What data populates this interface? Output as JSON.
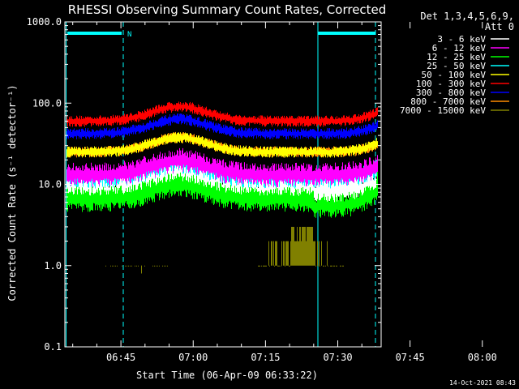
{
  "chart_data": {
    "type": "line",
    "title": "RHESSI Observing Summary Count Rates, Corrected",
    "xlabel": "Start Time (06-Apr-09 06:33:22)",
    "ylabel": "Corrected Count Rate (s⁻¹ detector⁻¹)",
    "yscale": "log",
    "ylim": [
      0.1,
      1000.0
    ],
    "y_ticks": [
      "1000.0",
      "100.0",
      "10.0",
      "1.0",
      "0.1"
    ],
    "xlim": [
      33.37,
      99.0
    ],
    "x_ticks": [
      {
        "min": 45,
        "label": "06:45"
      },
      {
        "min": 60,
        "label": "07:00"
      },
      {
        "min": 75,
        "label": "07:15"
      },
      {
        "min": 90,
        "label": "07:30"
      },
      {
        "min": 105,
        "label": "07:45"
      },
      {
        "min": 120,
        "label": "08:00"
      }
    ],
    "legend_header": [
      "Det 1,3,4,5,6,9,",
      "Att 0"
    ],
    "legend_position": "top-right",
    "series": [
      {
        "name": "3 - 6 keV",
        "color": "#ffffff",
        "base": 8.0,
        "peak": 16.0
      },
      {
        "name": "6 - 12 keV",
        "color": "#ff00ff",
        "base": 13.0,
        "peak": 25.0
      },
      {
        "name": "12 - 25 keV",
        "color": "#00ff00",
        "base": 6.5,
        "peak": 21.0
      },
      {
        "name": "25 - 50 keV",
        "color": "#00ffff",
        "base": 10.5,
        "peak": 27.0
      },
      {
        "name": "50 - 100 keV",
        "color": "#ffff00",
        "base": 25.0,
        "peak": 48.0
      },
      {
        "name": "100 - 300 keV",
        "color": "#ff0000",
        "base": 60.0,
        "peak": 115.0
      },
      {
        "name": "300 - 800 keV",
        "color": "#0000ff",
        "base": 42.0,
        "peak": 75.0
      },
      {
        "name": "800 - 7000 keV",
        "color": "#ff8c00",
        "base": 25.0,
        "peak": 45.0
      },
      {
        "name": "7000 - 15000 keV",
        "color": "#808000",
        "base": 1.0,
        "peak": 3.0
      }
    ],
    "attenuator_flag": {
      "label": "N"
    },
    "footer_timestamp": "14-Oct-2021 08:43"
  }
}
